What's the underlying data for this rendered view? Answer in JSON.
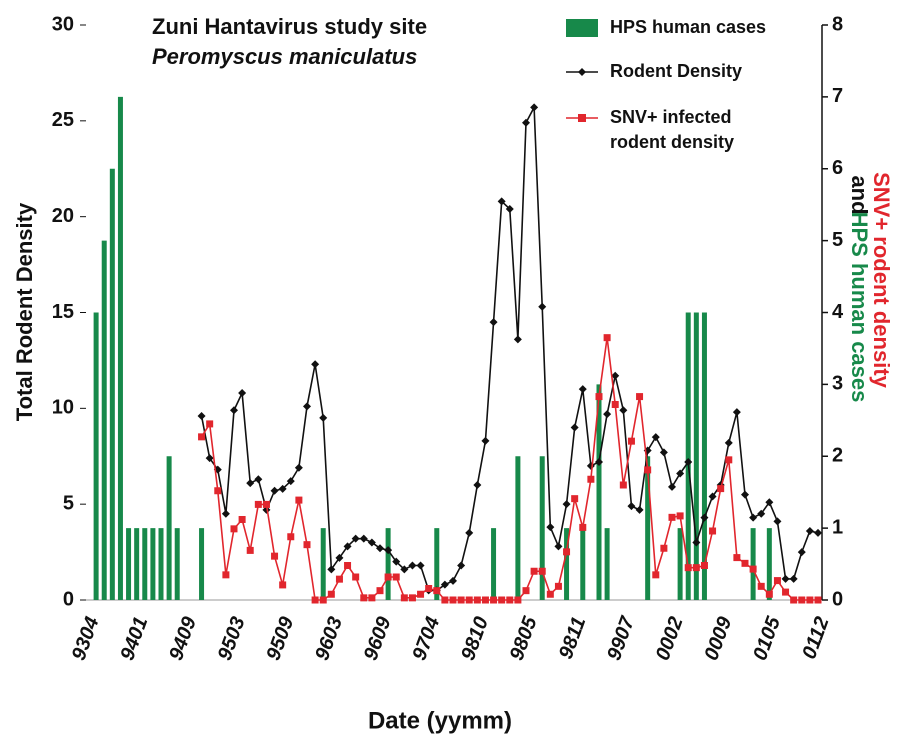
{
  "chart_data": {
    "type": "combo",
    "title": "Zuni Hantavirus study site",
    "subtitle": "Peromyscus maniculatus",
    "xlabel": "Date (yymm)",
    "ylabel": "Total Rodent Density",
    "y2label": [
      "SNV+ rodent density",
      "and",
      "HPS human cases"
    ],
    "categories": [
      "9304",
      null,
      null,
      null,
      null,
      null,
      "9401",
      null,
      null,
      null,
      null,
      null,
      "9409",
      null,
      null,
      null,
      null,
      null,
      "9503",
      null,
      null,
      null,
      null,
      null,
      "9509",
      null,
      null,
      null,
      null,
      null,
      "9603",
      null,
      null,
      null,
      null,
      null,
      "9609",
      null,
      null,
      null,
      null,
      null,
      "9704",
      null,
      null,
      null,
      null,
      null,
      "9810",
      null,
      null,
      null,
      null,
      null,
      "9805",
      null,
      null,
      null,
      null,
      null,
      "9811",
      null,
      null,
      null,
      null,
      null,
      "9907",
      null,
      null,
      null,
      null,
      null,
      "0002",
      null,
      null,
      null,
      null,
      null,
      "0009",
      null,
      null,
      null,
      null,
      null,
      "0105",
      null,
      null,
      null,
      null,
      null,
      "0112"
    ],
    "ylim": [
      0,
      30
    ],
    "yticks": [
      0,
      5,
      10,
      15,
      20,
      25,
      30
    ],
    "y2lim": [
      0,
      8
    ],
    "y2ticks": [
      0,
      1,
      2,
      3,
      4,
      5,
      6,
      7,
      8
    ],
    "series": [
      {
        "name": "HPS human cases",
        "type": "bar",
        "axis": "y2",
        "color": "#17894a",
        "values": [
          0,
          4,
          5,
          6,
          7,
          1,
          1,
          1,
          1,
          1,
          2,
          1,
          0,
          0,
          1,
          0,
          0,
          0,
          0,
          0,
          0,
          0,
          0,
          0,
          0,
          0,
          0,
          0,
          0,
          1,
          0,
          0,
          0,
          0,
          0,
          0,
          0,
          1,
          0,
          0,
          0,
          0,
          0,
          1,
          0,
          0,
          0,
          0,
          0,
          0,
          1,
          0,
          0,
          2,
          0,
          0,
          2,
          0,
          0,
          1,
          0,
          1,
          0,
          3,
          1,
          0,
          0,
          0,
          0,
          2,
          0,
          0,
          0,
          1,
          4,
          4,
          4,
          0,
          0,
          0,
          0,
          0,
          1,
          0,
          1,
          0,
          0,
          0,
          0,
          0,
          0
        ]
      },
      {
        "name": "Rodent Density",
        "type": "line",
        "marker": "diamond",
        "color": "#111111",
        "values": [
          null,
          null,
          null,
          null,
          null,
          null,
          null,
          null,
          null,
          null,
          null,
          null,
          null,
          null,
          9.6,
          7.4,
          6.8,
          4.5,
          9.9,
          10.8,
          6.1,
          6.3,
          4.7,
          5.7,
          5.8,
          6.2,
          6.9,
          10.1,
          12.3,
          9.5,
          1.6,
          2.2,
          2.8,
          3.2,
          3.2,
          3.0,
          2.7,
          2.6,
          2.0,
          1.6,
          1.8,
          1.8,
          0.5,
          0.5,
          0.8,
          1.0,
          1.8,
          3.5,
          6.0,
          8.3,
          14.5,
          20.8,
          20.4,
          13.6,
          24.9,
          25.7,
          15.3,
          3.8,
          2.8,
          5.0,
          9.0,
          11.0,
          7.0,
          7.2,
          9.7,
          11.7,
          9.9,
          4.9,
          4.7,
          7.8,
          8.5,
          7.7,
          5.9,
          6.6,
          7.2,
          3.0,
          4.3,
          5.4,
          6.0,
          8.2,
          9.8,
          5.5,
          4.3,
          4.5,
          5.1,
          4.1,
          1.1,
          1.1,
          2.5,
          3.6,
          3.5
        ]
      },
      {
        "name": "SNV+ infected rodent density",
        "type": "line",
        "marker": "square",
        "axis": "y2",
        "color": "#e1262d",
        "values": [
          null,
          null,
          null,
          null,
          null,
          null,
          null,
          null,
          null,
          null,
          null,
          null,
          null,
          null,
          2.27,
          2.45,
          1.52,
          0.35,
          0.99,
          1.12,
          0.69,
          1.33,
          1.33,
          0.61,
          0.21,
          0.88,
          1.39,
          0.77,
          0,
          0,
          0.08,
          0.29,
          0.48,
          0.32,
          0.03,
          0.03,
          0.13,
          0.32,
          0.32,
          0.03,
          0.03,
          0.08,
          0.16,
          0.13,
          0,
          0,
          0,
          0,
          0,
          0,
          0,
          0,
          0,
          0,
          0.13,
          0.4,
          0.4,
          0.08,
          0.19,
          0.67,
          1.41,
          1.01,
          1.68,
          2.83,
          3.65,
          2.72,
          1.6,
          2.21,
          2.83,
          1.81,
          0.35,
          0.72,
          1.15,
          1.17,
          0.45,
          0.45,
          0.48,
          0.96,
          1.55,
          1.95,
          0.59,
          0.51,
          0.43,
          0.19,
          0.08,
          0.27,
          0.11,
          0,
          0,
          0,
          0
        ]
      }
    ]
  }
}
